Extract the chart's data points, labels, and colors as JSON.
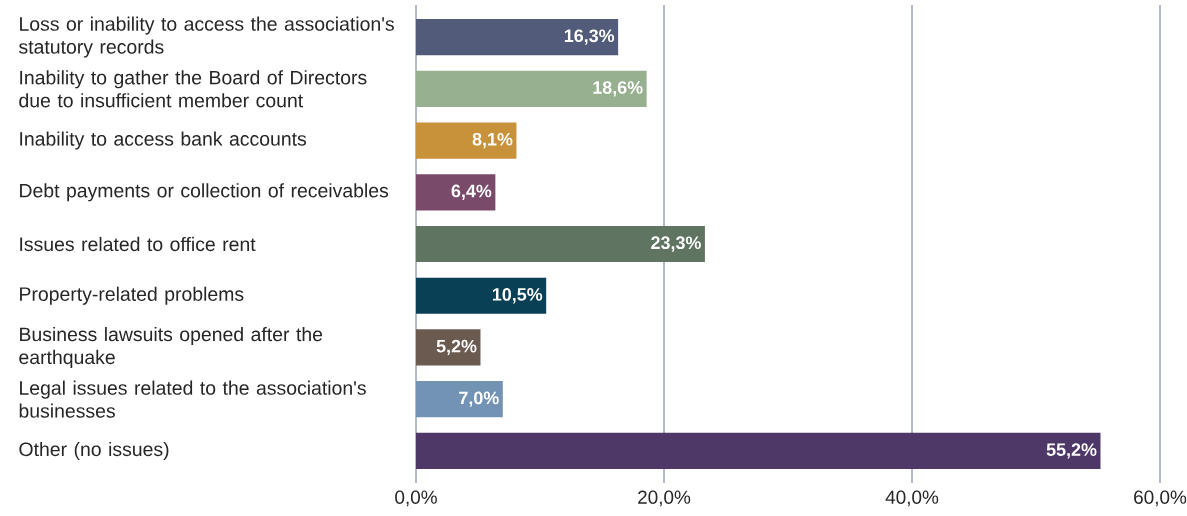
{
  "chart_data": {
    "type": "bar",
    "orientation": "horizontal",
    "categories": [
      "Loss or inability to access the association's statutory records",
      "Inability to gather the Board of Directors due to insufficient member count",
      "Inability to access bank accounts",
      "Debt payments or collection of receivables",
      "Issues related to office rent",
      "Property-related problems",
      "Business lawsuits opened after the earthquake",
      "Legal issues related to the association's businesses",
      "Other (no issues)"
    ],
    "values": [
      16.3,
      18.6,
      8.1,
      6.4,
      23.3,
      10.5,
      5.2,
      7.0,
      55.2
    ],
    "value_labels": [
      "16,3%",
      "18,6%",
      "8,1%",
      "6,4%",
      "23,3%",
      "10,5%",
      "5,2%",
      "7,0%",
      "55,2%"
    ],
    "colors": [
      "#525c7a",
      "#97b08f",
      "#c8923a",
      "#7a4a6a",
      "#607462",
      "#0a4055",
      "#6a5a50",
      "#7393b5",
      "#4e3868"
    ],
    "xlim": [
      0,
      60
    ],
    "xticks": [
      {
        "value": 0,
        "label": "0,0%"
      },
      {
        "value": 20,
        "label": "20,0%"
      },
      {
        "value": 40,
        "label": "40,0%"
      },
      {
        "value": 60,
        "label": "60,0%"
      }
    ],
    "grid": "x"
  }
}
